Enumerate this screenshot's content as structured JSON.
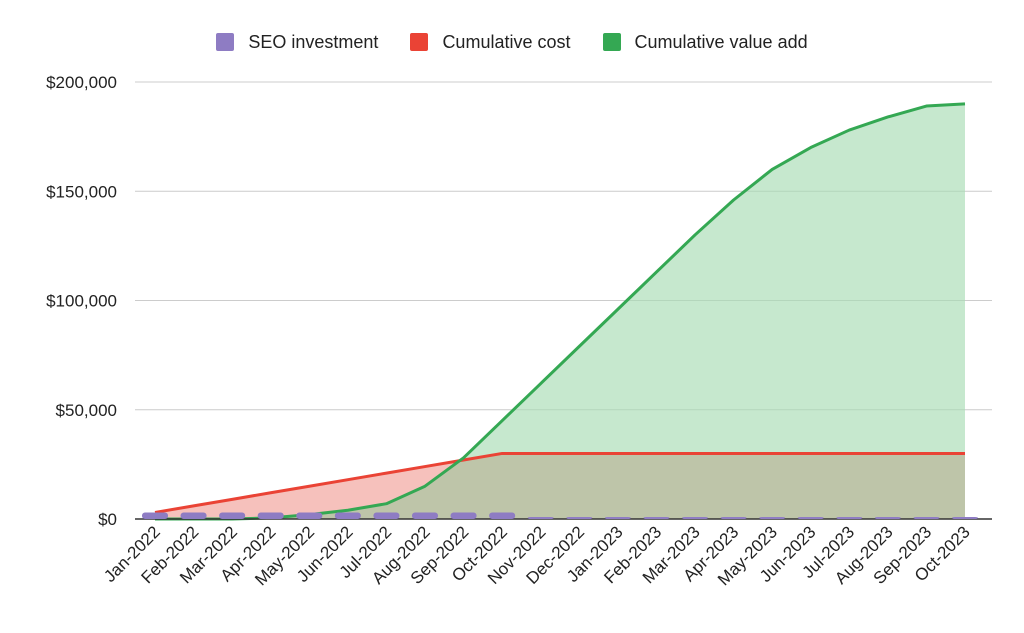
{
  "chart_data": {
    "type": "area",
    "categories": [
      "Jan-2022",
      "Feb-2022",
      "Mar-2022",
      "Apr-2022",
      "May-2022",
      "Jun-2022",
      "Jul-2022",
      "Aug-2022",
      "Sep-2022",
      "Oct-2022",
      "Nov-2022",
      "Dec-2022",
      "Jan-2023",
      "Feb-2023",
      "Mar-2023",
      "Apr-2023",
      "May-2023",
      "Jun-2023",
      "Jul-2023",
      "Aug-2023",
      "Sep-2023",
      "Oct-2023"
    ],
    "ylim": [
      0,
      200000
    ],
    "yticks": [
      0,
      50000,
      100000,
      150000,
      200000
    ],
    "ytick_labels": [
      "$0",
      "$50,000",
      "$100,000",
      "$150,000",
      "$200,000"
    ],
    "grid": true,
    "legend_placement": "top-center",
    "series": [
      {
        "name": "SEO investment",
        "kind": "bar",
        "color": "#8e7cc3",
        "values": [
          3000,
          3000,
          3000,
          3000,
          3000,
          3000,
          3000,
          3000,
          3000,
          3000,
          0,
          0,
          0,
          0,
          0,
          0,
          0,
          0,
          0,
          0,
          0,
          0
        ]
      },
      {
        "name": "Cumulative cost",
        "kind": "area",
        "color": "#ea4335",
        "fill": "#f4b6b0",
        "values": [
          3000,
          6000,
          9000,
          12000,
          15000,
          18000,
          21000,
          24000,
          27000,
          30000,
          30000,
          30000,
          30000,
          30000,
          30000,
          30000,
          30000,
          30000,
          30000,
          30000,
          30000,
          30000
        ]
      },
      {
        "name": "Cumulative value add",
        "kind": "area",
        "color": "#34a853",
        "fill": "#a8dcb3",
        "values": [
          0,
          0,
          0,
          500,
          2000,
          4000,
          7000,
          15000,
          28000,
          45000,
          62000,
          79000,
          96000,
          113000,
          130000,
          146000,
          160000,
          170000,
          178000,
          184000,
          189000,
          190000
        ]
      }
    ]
  }
}
